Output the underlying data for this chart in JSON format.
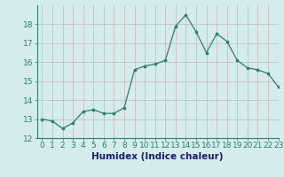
{
  "x": [
    0,
    1,
    2,
    3,
    4,
    5,
    6,
    7,
    8,
    9,
    10,
    11,
    12,
    13,
    14,
    15,
    16,
    17,
    18,
    19,
    20,
    21,
    22,
    23
  ],
  "y": [
    13.0,
    12.9,
    12.5,
    12.8,
    13.4,
    13.5,
    13.3,
    13.3,
    13.6,
    15.6,
    15.8,
    15.9,
    16.1,
    17.9,
    18.5,
    17.6,
    16.5,
    17.5,
    17.1,
    16.1,
    15.7,
    15.6,
    15.4,
    14.7
  ],
  "xlabel": "Humidex (Indice chaleur)",
  "ylim": [
    12,
    19
  ],
  "xlim": [
    -0.5,
    23
  ],
  "yticks": [
    12,
    13,
    14,
    15,
    16,
    17,
    18
  ],
  "xticks": [
    0,
    1,
    2,
    3,
    4,
    5,
    6,
    7,
    8,
    9,
    10,
    11,
    12,
    13,
    14,
    15,
    16,
    17,
    18,
    19,
    20,
    21,
    22,
    23
  ],
  "line_color": "#2a7f6f",
  "marker_color": "#2a7f6f",
  "bg_color": "#d4ecec",
  "grid_major_color": "#c8b4b4",
  "grid_minor_color": "#c8b4b4",
  "tick_label_fontsize": 6.5,
  "xlabel_fontsize": 7.5,
  "xlabel_color": "#1a1a6e"
}
